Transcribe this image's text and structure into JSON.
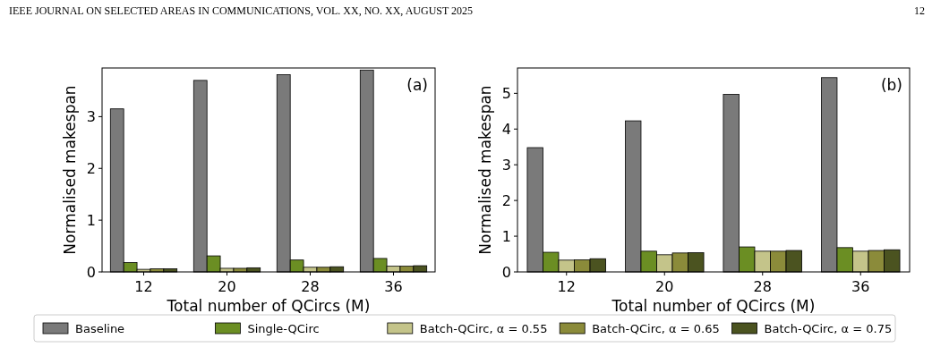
{
  "chart_data": [
    {
      "type": "bar",
      "xlabel": "Total number of QCircs (M)",
      "ylabel": "Normalised makespan",
      "categories": [
        "12",
        "20",
        "28",
        "36"
      ],
      "ylim": [
        0,
        3.94
      ],
      "yticks": [
        0,
        1,
        2,
        3
      ],
      "legend": "bottom",
      "annotations": [
        "(a)",
        "IEEE JOURNAL ON SELECTED AREAS IN COMMUNICATIONS, VOL. XX, NO. XX, AUGUST 2025",
        "12"
      ],
      "series": [
        {
          "name": "Baseline",
          "color": "#7a7a7a",
          "values": [
            3.15,
            3.7,
            3.81,
            3.9
          ]
        },
        {
          "name": "Single-QCirc",
          "color": "#6b8e23",
          "values": [
            0.18,
            0.31,
            0.23,
            0.26
          ]
        },
        {
          "name": "Batch-QCirc, α = 0.55",
          "color": "#c4c48a",
          "values": [
            0.05,
            0.07,
            0.09,
            0.11
          ]
        },
        {
          "name": "Batch-QCirc, α = 0.65",
          "color": "#8b8b3a",
          "values": [
            0.06,
            0.07,
            0.09,
            0.11
          ]
        },
        {
          "name": "Batch-QCirc, α = 0.75",
          "color": "#4b5320",
          "values": [
            0.06,
            0.08,
            0.1,
            0.12
          ]
        }
      ]
    },
    {
      "type": "bar",
      "xlabel": "Total number of QCircs (M)",
      "ylabel": "Normalised makespan",
      "categories": [
        "12",
        "20",
        "28",
        "36"
      ],
      "ylim": [
        0,
        5.71
      ],
      "yticks": [
        0,
        1,
        2,
        3,
        4,
        5
      ],
      "annotations": [
        "(b)"
      ],
      "series": [
        {
          "color": "#7a7a7a",
          "values": [
            3.48,
            4.23,
            4.97,
            5.44
          ]
        },
        {
          "color": "#6b8e23",
          "values": [
            0.55,
            0.58,
            0.7,
            0.68
          ]
        },
        {
          "color": "#c4c48a",
          "values": [
            0.33,
            0.48,
            0.58,
            0.58
          ]
        },
        {
          "color": "#8b8b3a",
          "values": [
            0.34,
            0.53,
            0.58,
            0.6
          ]
        },
        {
          "color": "#4b5320",
          "values": [
            0.37,
            0.54,
            0.6,
            0.62
          ]
        }
      ]
    }
  ]
}
